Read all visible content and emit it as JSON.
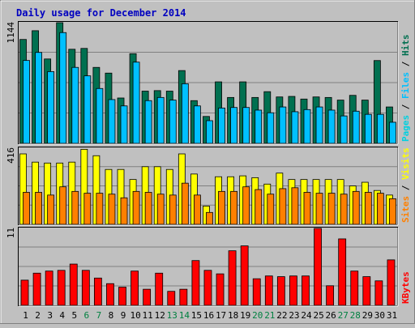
{
  "title": "Daily usage for December 2014",
  "colors": {
    "bg": "#c0c0c0",
    "panel": "#c0c0c0",
    "title": "#0000c0",
    "hits": "#007050",
    "files": "#00c0ff",
    "pages": "#00d0e0",
    "visits": "#ffff00",
    "sites": "#ff8000",
    "kbytes": "#ff0000",
    "weekend": "#008040",
    "weekday": "#000000"
  },
  "chart_data": [
    {
      "type": "bar",
      "name": "hits-files-pages",
      "ymax_label": "1144",
      "ymax": 1144,
      "legend": [
        "Pages",
        "Files",
        "Hits"
      ],
      "x": [
        1,
        2,
        3,
        4,
        5,
        6,
        7,
        8,
        9,
        10,
        11,
        12,
        13,
        14,
        15,
        16,
        17,
        18,
        19,
        20,
        21,
        22,
        23,
        24,
        25,
        26,
        27,
        28,
        29,
        30,
        31
      ],
      "series": [
        {
          "name": "Hits",
          "values": [
            985,
            1068,
            800,
            1144,
            892,
            900,
            720,
            666,
            430,
            850,
            495,
            500,
            495,
            690,
            405,
            255,
            583,
            435,
            583,
            435,
            490,
            440,
            445,
            420,
            440,
            435,
            410,
            455,
            410,
            785,
            345
          ]
        },
        {
          "name": "Files",
          "values": [
            786,
            862,
            680,
            1050,
            720,
            640,
            520,
            415,
            355,
            770,
            405,
            435,
            410,
            565,
            355,
            215,
            335,
            340,
            340,
            315,
            290,
            345,
            300,
            320,
            345,
            315,
            260,
            305,
            275,
            275,
            200
          ]
        },
        {
          "name": "Pages",
          "values": [
            0,
            0,
            0,
            0,
            0,
            0,
            0,
            0,
            0,
            0,
            0,
            0,
            0,
            0,
            0,
            0,
            0,
            0,
            0,
            0,
            0,
            0,
            0,
            0,
            0,
            0,
            0,
            0,
            0,
            0,
            0
          ]
        }
      ]
    },
    {
      "type": "bar",
      "name": "visits-sites",
      "ymax_label": "416",
      "ymax": 416,
      "legend": [
        "Sites",
        "Visits"
      ],
      "x": [
        1,
        2,
        3,
        4,
        5,
        6,
        7,
        8,
        9,
        10,
        11,
        12,
        13,
        14,
        15,
        16,
        17,
        18,
        19,
        20,
        21,
        22,
        23,
        24,
        25,
        26,
        27,
        28,
        29,
        30,
        31
      ],
      "series": [
        {
          "name": "Visits",
          "values": [
            385,
            340,
            335,
            335,
            340,
            410,
            375,
            300,
            300,
            245,
            315,
            315,
            300,
            385,
            275,
            100,
            260,
            260,
            265,
            255,
            220,
            280,
            245,
            245,
            245,
            245,
            245,
            210,
            230,
            185,
            160
          ]
        },
        {
          "name": "Sites",
          "values": [
            175,
            175,
            160,
            205,
            180,
            170,
            170,
            165,
            145,
            180,
            175,
            165,
            160,
            225,
            160,
            65,
            180,
            180,
            205,
            190,
            165,
            195,
            200,
            175,
            170,
            170,
            165,
            180,
            175,
            170,
            140
          ]
        }
      ]
    },
    {
      "type": "bar",
      "name": "kbytes",
      "ymax_label": "11",
      "ymax": 11,
      "legend": [
        "KBytes"
      ],
      "x": [
        1,
        2,
        3,
        4,
        5,
        6,
        7,
        8,
        9,
        10,
        11,
        12,
        13,
        14,
        15,
        16,
        17,
        18,
        19,
        20,
        21,
        22,
        23,
        24,
        25,
        26,
        27,
        28,
        29,
        30,
        31
      ],
      "series": [
        {
          "name": "KBytes",
          "values": [
            3.6,
            4.6,
            4.9,
            5.0,
            5.9,
            5.0,
            3.9,
            3.1,
            2.6,
            4.9,
            2.3,
            4.6,
            2.0,
            2.3,
            6.4,
            5.0,
            4.5,
            7.8,
            8.5,
            3.8,
            4.2,
            4.1,
            4.2,
            4.2,
            11.0,
            2.8,
            9.5,
            4.9,
            4.1,
            3.5,
            6.5
          ]
        }
      ]
    }
  ],
  "days": [
    {
      "label": "1",
      "weekend": false
    },
    {
      "label": "2",
      "weekend": false
    },
    {
      "label": "3",
      "weekend": false
    },
    {
      "label": "4",
      "weekend": false
    },
    {
      "label": "5",
      "weekend": false
    },
    {
      "label": "6",
      "weekend": true
    },
    {
      "label": "7",
      "weekend": true
    },
    {
      "label": "8",
      "weekend": false
    },
    {
      "label": "9",
      "weekend": false
    },
    {
      "label": "10",
      "weekend": false
    },
    {
      "label": "11",
      "weekend": false
    },
    {
      "label": "12",
      "weekend": false
    },
    {
      "label": "13",
      "weekend": true
    },
    {
      "label": "14",
      "weekend": true
    },
    {
      "label": "15",
      "weekend": false
    },
    {
      "label": "16",
      "weekend": false
    },
    {
      "label": "17",
      "weekend": false
    },
    {
      "label": "18",
      "weekend": false
    },
    {
      "label": "19",
      "weekend": false
    },
    {
      "label": "20",
      "weekend": true
    },
    {
      "label": "21",
      "weekend": true
    },
    {
      "label": "22",
      "weekend": false
    },
    {
      "label": "23",
      "weekend": false
    },
    {
      "label": "24",
      "weekend": false
    },
    {
      "label": "25",
      "weekend": false
    },
    {
      "label": "26",
      "weekend": false
    },
    {
      "label": "27",
      "weekend": true
    },
    {
      "label": "28",
      "weekend": true
    },
    {
      "label": "29",
      "weekend": false
    },
    {
      "label": "30",
      "weekend": false
    },
    {
      "label": "31",
      "weekend": false
    }
  ]
}
